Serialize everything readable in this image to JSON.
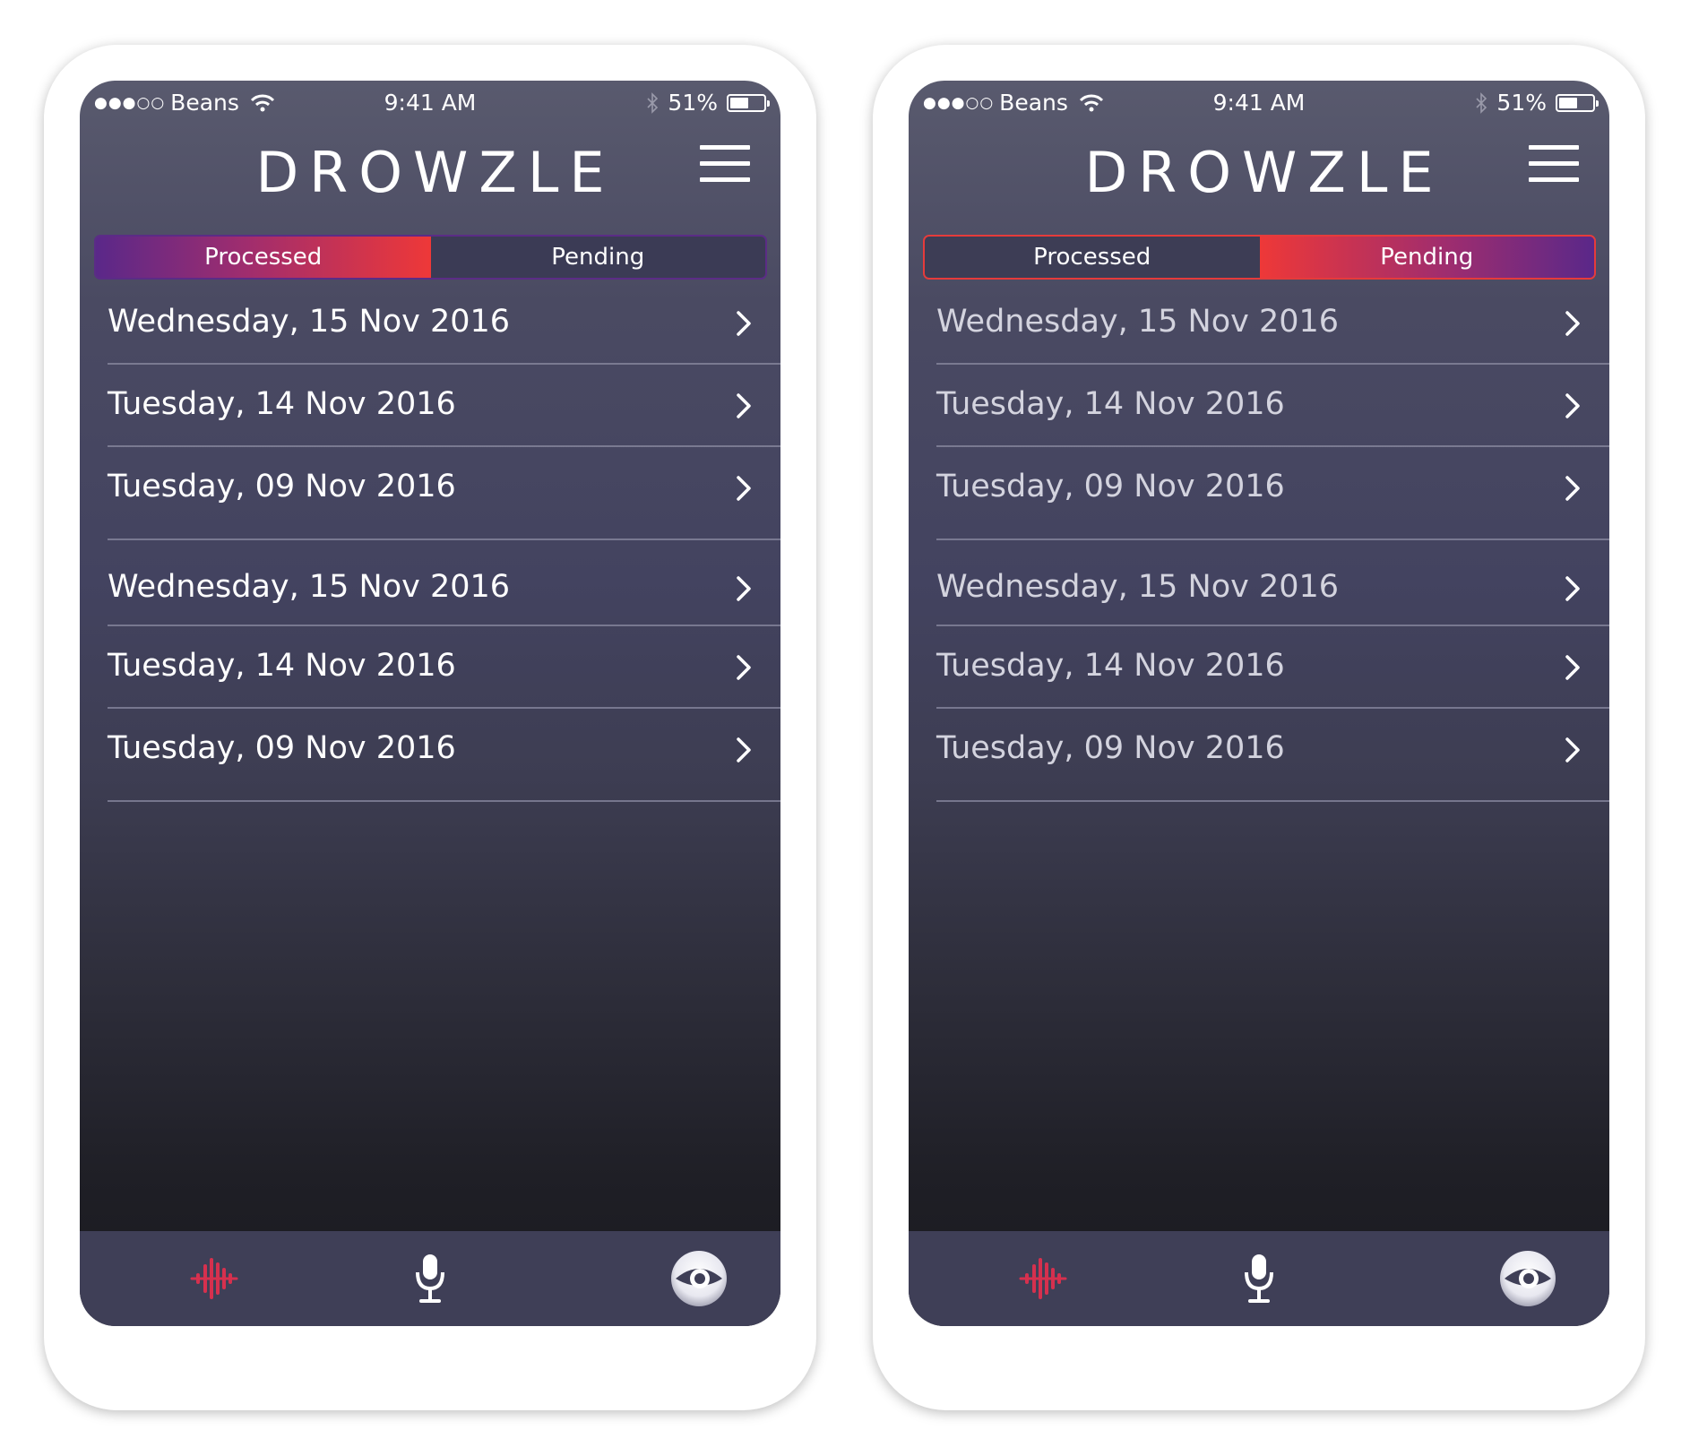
{
  "status_bar": {
    "signal_dots": "●●●○○",
    "carrier": "Beans",
    "time": "9:41 AM",
    "battery_percent": "51%",
    "battery_level": 0.51
  },
  "header": {
    "logo": "DROWZLE",
    "menu_icon": "hamburger-menu-icon"
  },
  "segment": {
    "processed_label": "Processed",
    "pending_label": "Pending"
  },
  "screens": [
    {
      "selected_tab": "Processed"
    },
    {
      "selected_tab": "Pending"
    }
  ],
  "dates": [
    "Wednesday, 15 Nov 2016",
    "Tuesday, 14 Nov 2016",
    "Tuesday, 09 Nov 2016",
    "Wednesday, 15 Nov 2016",
    "Tuesday, 14 Nov 2016",
    "Tuesday, 09 Nov 2016"
  ],
  "tab_bar": {
    "items": [
      "waveform-icon",
      "microphone-icon",
      "eye-icon"
    ]
  },
  "colors": {
    "accent_red": "#ee3838",
    "accent_purple": "#5a2889",
    "waveform_icon": "#d6304e",
    "tab_bar_bg": "#3f3f57"
  }
}
